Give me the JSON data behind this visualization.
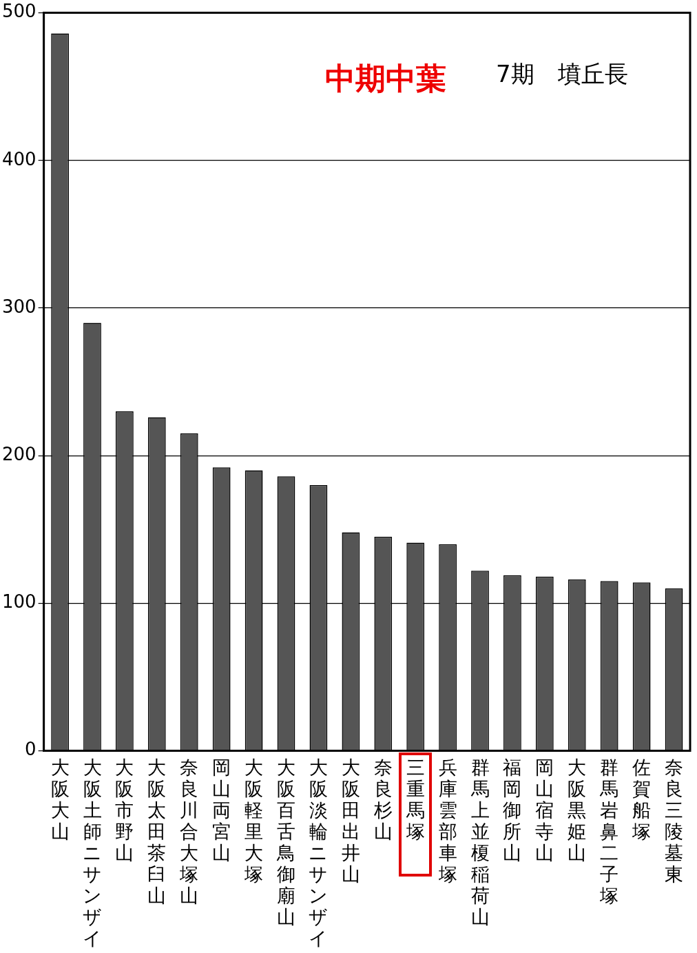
{
  "chart_data": {
    "type": "bar",
    "title": "中期中葉",
    "subtitle": "7期　墳丘長",
    "categories": [
      "大阪大山",
      "大阪土師ニサンザイ",
      "大阪市野山",
      "大阪太田茶臼山",
      "奈良川合大塚山",
      "岡山両宮山",
      "大阪軽里大塚",
      "大阪百舌鳥御廟山",
      "大阪淡輪ニサンザイ",
      "大阪田出井山",
      "奈良杉山",
      "三重馬塚",
      "兵庫雲部車塚",
      "群馬上並榎稲荷山",
      "福岡御所山",
      "岡山宿寺山",
      "大阪黒姫山",
      "群馬岩鼻二子塚",
      "佐賀船塚",
      "奈良三陵墓東"
    ],
    "values": [
      486,
      290,
      230,
      226,
      215,
      192,
      190,
      186,
      180,
      148,
      145,
      141,
      140,
      122,
      119,
      118,
      116,
      115,
      114,
      110
    ],
    "color": "#555555",
    "ylim": [
      0,
      500
    ],
    "yticks": [
      0,
      100,
      200,
      300,
      400,
      500
    ],
    "grid": "y",
    "legend": false
  }
}
